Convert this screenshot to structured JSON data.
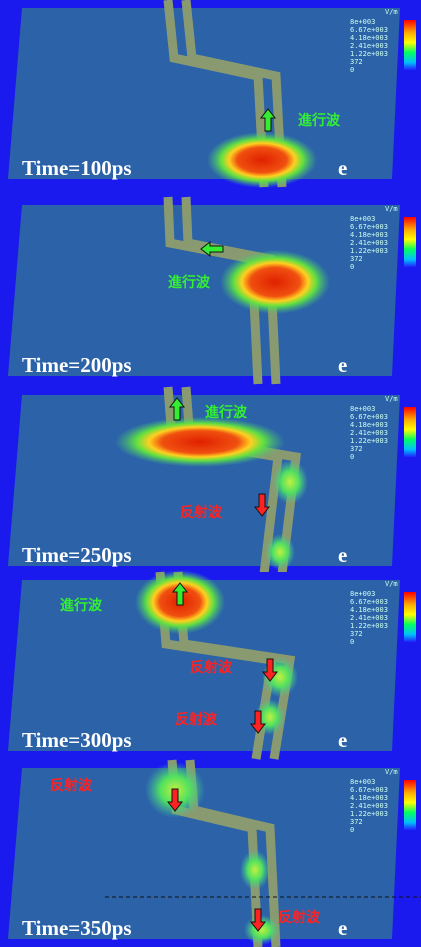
{
  "legend": {
    "unit": "V/m",
    "labels": [
      "8e+003",
      "6.67e+003",
      "4.18e+003",
      "2.41e+003",
      "1.22e+003",
      "372",
      "0"
    ]
  },
  "panels": [
    {
      "time": "Time=100ps",
      "mark": "e",
      "labels": [
        {
          "text": "進行波",
          "color": "#33ee33"
        }
      ]
    },
    {
      "time": "Time=200ps",
      "mark": "e",
      "labels": [
        {
          "text": "進行波",
          "color": "#33ee33"
        }
      ]
    },
    {
      "time": "Time=250ps",
      "mark": "e",
      "labels": [
        {
          "text": "進行波",
          "color": "#33ee33"
        },
        {
          "text": "反射波",
          "color": "#ff2222"
        }
      ]
    },
    {
      "time": "Time=300ps",
      "mark": "e",
      "labels": [
        {
          "text": "進行波",
          "color": "#33ee33"
        },
        {
          "text": "反射波",
          "color": "#ff2222"
        },
        {
          "text": "反射波",
          "color": "#ff2222"
        }
      ]
    },
    {
      "time": "Time=350ps",
      "mark": "e",
      "labels": [
        {
          "text": "反射波",
          "color": "#ff2222"
        },
        {
          "text": "反射波",
          "color": "#ff2222"
        }
      ]
    }
  ]
}
